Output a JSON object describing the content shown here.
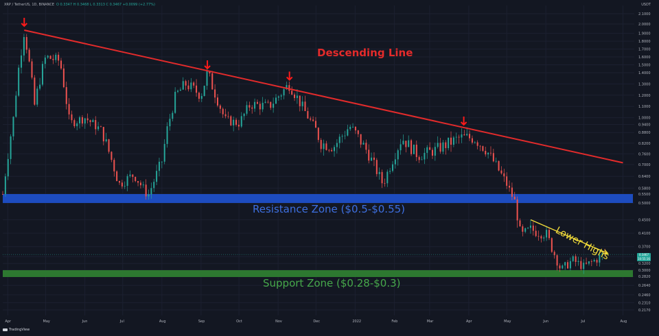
{
  "header": {
    "symbol": "XRP / TetherUS, 1D, BINANCE",
    "ohlc": "O 0.3347  H 0.3468  L 0.3313  C 0.3467  +0.0099 (+2.77%)",
    "ohlc_color": "#26a69a"
  },
  "annotations": {
    "descending_line": "Descending Line",
    "resistance_zone": "Resistance Zone ($0.5-$0.55)",
    "support_zone": "Support Zone ($0.28-$0.3)",
    "lower_highs": "Lower Highs"
  },
  "price_scale": {
    "unit": "USDT",
    "current_price": "0.3467",
    "current_countdown": "10:55:16",
    "current_color": "#26a69a"
  },
  "watermark": {
    "brand": "TradingView"
  },
  "colors": {
    "background": "#131722",
    "up": "#26a69a",
    "down": "#ef5350",
    "descending_line": "#e32b2b",
    "resistance": "#1e4fc8",
    "support": "#2e7d32",
    "lower_highs": "#f2dc3a",
    "arrow": "#ff1a1a"
  },
  "chart_data": {
    "type": "candlestick",
    "title": "XRP / TetherUS, 1D, BINANCE",
    "x_ticks": [
      "Apr",
      "May",
      "Jun",
      "Jul",
      "Aug",
      "Sep",
      "Oct",
      "Nov",
      "Dec",
      "2022",
      "Feb",
      "Mar",
      "Apr",
      "May",
      "Jun",
      "Jul",
      "Aug"
    ],
    "y_ticks": [
      "2.1000",
      "2.0000",
      "1.9000",
      "1.8000",
      "1.7000",
      "1.6000",
      "1.5000",
      "1.4000",
      "1.3000",
      "1.2000",
      "1.1000",
      "1.0000",
      "0.9400",
      "0.8800",
      "0.8200",
      "0.7600",
      "0.7000",
      "0.6400",
      "0.5800",
      "0.5500",
      "0.5000",
      "0.4500",
      "0.4100",
      "0.3700",
      "0.3400",
      "0.3200",
      "0.3000",
      "0.2820",
      "0.2640",
      "0.2460",
      "0.2310",
      "0.2170"
    ],
    "price_path": [
      [
        "2021-03-28",
        0.55
      ],
      [
        "2021-04-05",
        0.95
      ],
      [
        "2021-04-14",
        1.94
      ],
      [
        "2021-04-22",
        1.1
      ],
      [
        "2021-05-01",
        1.6
      ],
      [
        "2021-05-12",
        1.55
      ],
      [
        "2021-05-20",
        0.95
      ],
      [
        "2021-06-01",
        1.0
      ],
      [
        "2021-06-15",
        0.88
      ],
      [
        "2021-06-28",
        0.6
      ],
      [
        "2021-07-10",
        0.65
      ],
      [
        "2021-07-21",
        0.54
      ],
      [
        "2021-08-01",
        0.72
      ],
      [
        "2021-08-12",
        1.2
      ],
      [
        "2021-08-20",
        1.3
      ],
      [
        "2021-09-01",
        1.2
      ],
      [
        "2021-09-06",
        1.4
      ],
      [
        "2021-09-20",
        0.98
      ],
      [
        "2021-10-01",
        0.95
      ],
      [
        "2021-10-10",
        1.12
      ],
      [
        "2021-10-25",
        1.1
      ],
      [
        "2021-11-10",
        1.3
      ],
      [
        "2021-11-25",
        1.0
      ],
      [
        "2021-12-05",
        0.82
      ],
      [
        "2021-12-15",
        0.8
      ],
      [
        "2021-12-28",
        0.92
      ],
      [
        "2022-01-10",
        0.78
      ],
      [
        "2022-01-23",
        0.6
      ],
      [
        "2022-02-07",
        0.85
      ],
      [
        "2022-02-20",
        0.75
      ],
      [
        "2022-03-05",
        0.78
      ],
      [
        "2022-03-25",
        0.85
      ],
      [
        "2022-04-05",
        0.85
      ],
      [
        "2022-04-15",
        0.78
      ],
      [
        "2022-05-01",
        0.6
      ],
      [
        "2022-05-08",
        0.5
      ],
      [
        "2022-05-12",
        0.4
      ],
      [
        "2022-05-20",
        0.42
      ],
      [
        "2022-06-01",
        0.41
      ],
      [
        "2022-06-13",
        0.3
      ],
      [
        "2022-06-22",
        0.33
      ],
      [
        "2022-07-01",
        0.31
      ],
      [
        "2022-07-10",
        0.33
      ],
      [
        "2022-07-18",
        0.35
      ]
    ],
    "descending_line": [
      [
        "2021-04-14",
        1.94
      ],
      [
        "2022-08-01",
        0.71
      ]
    ],
    "resistance_zone": [
      0.5,
      0.55
    ],
    "support_zone": [
      0.28,
      0.3
    ],
    "lower_highs_line": [
      [
        "2022-05-20",
        0.45
      ],
      [
        "2022-07-20",
        0.35
      ]
    ],
    "arrow_markers": [
      [
        "2021-04-14",
        1.94
      ],
      [
        "2021-09-06",
        1.4
      ],
      [
        "2021-11-10",
        1.3
      ],
      [
        "2022-03-28",
        0.9
      ]
    ]
  }
}
